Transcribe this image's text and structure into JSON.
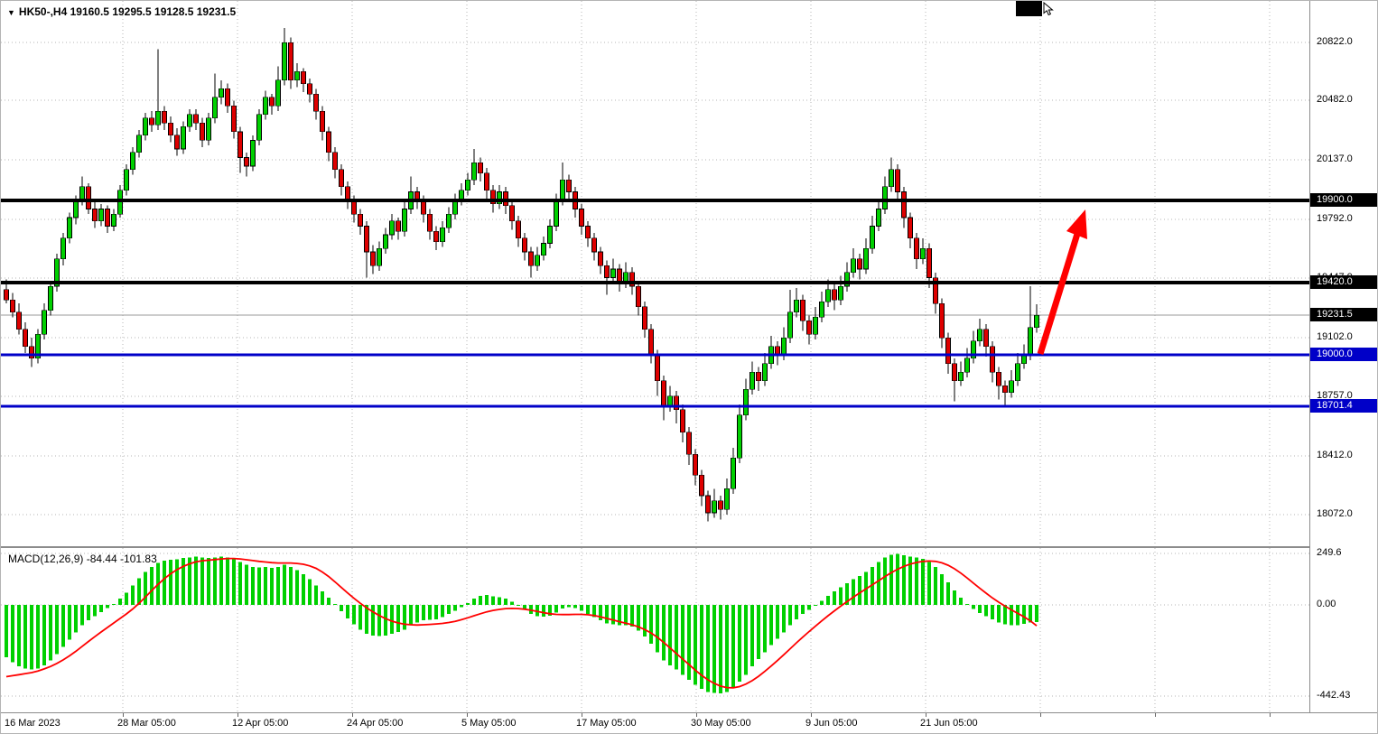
{
  "header": {
    "collapse_icon": "▼",
    "symbol_line": "HK50-,H4 19160.5 19295.5 19128.5 19231.5"
  },
  "chart_data": {
    "type": "candlestick",
    "symbol": "HK50-",
    "timeframe": "H4",
    "last_bar": {
      "open": 19160.5,
      "high": 19295.5,
      "low": 19128.5,
      "close": 19231.5
    },
    "current_price": 19231.5,
    "y_axis_ticks": [
      20822,
      20482,
      20137,
      19792,
      19447,
      19102,
      18757,
      18412,
      18072
    ],
    "x_axis_labels": [
      "16 Mar 2023",
      "28 Mar 05:00",
      "12 Apr 05:00",
      "24 Apr 05:00",
      "5 May 05:00",
      "17 May 05:00",
      "30 May 05:00",
      "9 Jun 05:00",
      "21 Jun 05:00"
    ],
    "price_labels": [
      {
        "text": "19900.0",
        "price": 19900,
        "style": "black"
      },
      {
        "text": "19420.0",
        "price": 19420,
        "style": "black"
      },
      {
        "text": "19231.5",
        "price": 19231.5,
        "style": "black"
      },
      {
        "text": "19000.0",
        "price": 19000,
        "style": "blue"
      },
      {
        "text": "18701.4",
        "price": 18701.4,
        "style": "blue"
      }
    ],
    "horizontal_lines": [
      {
        "price": 19900,
        "color": "#000000",
        "width": 4
      },
      {
        "price": 19420,
        "color": "#000000",
        "width": 4
      },
      {
        "price": 19000,
        "color": "#0000C8",
        "width": 3
      },
      {
        "price": 18701.4,
        "color": "#0000C8",
        "width": 3
      }
    ],
    "annotations": {
      "arrow": {
        "type": "up-trend-arrow",
        "color": "#FF0000",
        "from_price": 19050,
        "to_price": 19840
      }
    },
    "colors": {
      "bull": "#00D000",
      "bear": "#DE0000",
      "wick": "#000000",
      "grid": "#b6b6b6",
      "macd_histogram": "#00D000",
      "macd_signal": "#FF0000",
      "arrow": "#FF0000"
    },
    "candles": [
      [
        19380,
        19440,
        19300,
        19320
      ],
      [
        19320,
        19360,
        19220,
        19250
      ],
      [
        19250,
        19300,
        19120,
        19150
      ],
      [
        19150,
        19190,
        19010,
        19050
      ],
      [
        19050,
        19100,
        18930,
        18980
      ],
      [
        18980,
        19150,
        18950,
        19120
      ],
      [
        19120,
        19300,
        19090,
        19260
      ],
      [
        19260,
        19430,
        19230,
        19400
      ],
      [
        19400,
        19590,
        19370,
        19560
      ],
      [
        19560,
        19710,
        19520,
        19680
      ],
      [
        19680,
        19830,
        19650,
        19800
      ],
      [
        19800,
        19930,
        19760,
        19900
      ],
      [
        19900,
        20040,
        19870,
        19980
      ],
      [
        19980,
        20000,
        19820,
        19850
      ],
      [
        19850,
        19890,
        19740,
        19780
      ],
      [
        19780,
        19880,
        19750,
        19850
      ],
      [
        19850,
        19870,
        19710,
        19750
      ],
      [
        19750,
        19850,
        19720,
        19820
      ],
      [
        19820,
        19990,
        19800,
        19960
      ],
      [
        19960,
        20110,
        19930,
        20080
      ],
      [
        20080,
        20210,
        20050,
        20180
      ],
      [
        20180,
        20310,
        20150,
        20280
      ],
      [
        20280,
        20410,
        20250,
        20380
      ],
      [
        20380,
        20420,
        20300,
        20340
      ],
      [
        20340,
        20780,
        20310,
        20420
      ],
      [
        20420,
        20450,
        20310,
        20350
      ],
      [
        20350,
        20390,
        20240,
        20280
      ],
      [
        20280,
        20320,
        20160,
        20200
      ],
      [
        20200,
        20360,
        20170,
        20330
      ],
      [
        20330,
        20430,
        20300,
        20400
      ],
      [
        20400,
        20430,
        20310,
        20350
      ],
      [
        20350,
        20380,
        20210,
        20250
      ],
      [
        20250,
        20410,
        20220,
        20380
      ],
      [
        20380,
        20640,
        20350,
        20500
      ],
      [
        20500,
        20600,
        20460,
        20550
      ],
      [
        20550,
        20580,
        20410,
        20450
      ],
      [
        20450,
        20480,
        20260,
        20300
      ],
      [
        20300,
        20330,
        20060,
        20150
      ],
      [
        20150,
        20180,
        20040,
        20100
      ],
      [
        20100,
        20280,
        20070,
        20250
      ],
      [
        20250,
        20430,
        20220,
        20400
      ],
      [
        20400,
        20540,
        20370,
        20500
      ],
      [
        20500,
        20520,
        20400,
        20450
      ],
      [
        20450,
        20680,
        20420,
        20600
      ],
      [
        20600,
        20905,
        20570,
        20820
      ],
      [
        20820,
        20850,
        20550,
        20600
      ],
      [
        20600,
        20700,
        20560,
        20650
      ],
      [
        20650,
        20670,
        20530,
        20580
      ],
      [
        20580,
        20610,
        20470,
        20520
      ],
      [
        20520,
        20550,
        20370,
        20420
      ],
      [
        20420,
        20450,
        20250,
        20300
      ],
      [
        20300,
        20330,
        20130,
        20180
      ],
      [
        20180,
        20210,
        20030,
        20080
      ],
      [
        20080,
        20110,
        19930,
        19980
      ],
      [
        19980,
        20010,
        19850,
        19900
      ],
      [
        19900,
        19930,
        19770,
        19820
      ],
      [
        19820,
        19850,
        19700,
        19750
      ],
      [
        19750,
        19780,
        19450,
        19600
      ],
      [
        19600,
        19640,
        19470,
        19520
      ],
      [
        19520,
        19660,
        19490,
        19620
      ],
      [
        19620,
        19740,
        19590,
        19700
      ],
      [
        19700,
        19820,
        19670,
        19780
      ],
      [
        19780,
        19800,
        19670,
        19720
      ],
      [
        19720,
        19890,
        19690,
        19850
      ],
      [
        19850,
        20040,
        19820,
        19950
      ],
      [
        19950,
        19980,
        19850,
        19900
      ],
      [
        19900,
        19930,
        19770,
        19820
      ],
      [
        19820,
        19850,
        19670,
        19720
      ],
      [
        19720,
        19750,
        19610,
        19660
      ],
      [
        19660,
        19780,
        19630,
        19740
      ],
      [
        19740,
        19860,
        19710,
        19820
      ],
      [
        19820,
        19940,
        19790,
        19900
      ],
      [
        19900,
        20000,
        19870,
        19960
      ],
      [
        19960,
        20060,
        19930,
        20020
      ],
      [
        20020,
        20200,
        19990,
        20120
      ],
      [
        20120,
        20150,
        20010,
        20060
      ],
      [
        20060,
        20090,
        19910,
        19960
      ],
      [
        19960,
        19990,
        19830,
        19880
      ],
      [
        19880,
        19990,
        19850,
        19950
      ],
      [
        19950,
        19980,
        19820,
        19870
      ],
      [
        19870,
        19900,
        19730,
        19780
      ],
      [
        19780,
        19810,
        19630,
        19680
      ],
      [
        19680,
        19710,
        19550,
        19600
      ],
      [
        19600,
        19630,
        19450,
        19520
      ],
      [
        19520,
        19630,
        19490,
        19580
      ],
      [
        19580,
        19690,
        19550,
        19650
      ],
      [
        19650,
        19790,
        19620,
        19750
      ],
      [
        19750,
        19940,
        19720,
        19900
      ],
      [
        19900,
        20120,
        19870,
        20020
      ],
      [
        20020,
        20050,
        19900,
        19950
      ],
      [
        19950,
        19980,
        19800,
        19850
      ],
      [
        19850,
        19880,
        19700,
        19750
      ],
      [
        19750,
        19780,
        19630,
        19680
      ],
      [
        19680,
        19710,
        19550,
        19600
      ],
      [
        19600,
        19630,
        19470,
        19520
      ],
      [
        19520,
        19550,
        19350,
        19450
      ],
      [
        19450,
        19560,
        19420,
        19500
      ],
      [
        19500,
        19530,
        19370,
        19420
      ],
      [
        19420,
        19540,
        19390,
        19480
      ],
      [
        19480,
        19510,
        19350,
        19400
      ],
      [
        19400,
        19430,
        19230,
        19280
      ],
      [
        19280,
        19310,
        19100,
        19150
      ],
      [
        19150,
        19180,
        18950,
        19000
      ],
      [
        19000,
        19030,
        18760,
        18850
      ],
      [
        18850,
        18880,
        18620,
        18700
      ],
      [
        18700,
        18820,
        18670,
        18760
      ],
      [
        18760,
        18790,
        18600,
        18680
      ],
      [
        18680,
        18710,
        18490,
        18550
      ],
      [
        18550,
        18580,
        18360,
        18420
      ],
      [
        18420,
        18450,
        18240,
        18300
      ],
      [
        18300,
        18330,
        18120,
        18180
      ],
      [
        18180,
        18210,
        18030,
        18080
      ],
      [
        18080,
        18220,
        18050,
        18150
      ],
      [
        18150,
        18180,
        18040,
        18100
      ],
      [
        18100,
        18280,
        18070,
        18220
      ],
      [
        18220,
        18460,
        18190,
        18400
      ],
      [
        18400,
        18710,
        18370,
        18650
      ],
      [
        18650,
        18860,
        18620,
        18800
      ],
      [
        18800,
        18960,
        18770,
        18900
      ],
      [
        18900,
        18930,
        18790,
        18850
      ],
      [
        18850,
        19010,
        18820,
        18950
      ],
      [
        18950,
        19110,
        18920,
        19050
      ],
      [
        19050,
        19080,
        18940,
        19000
      ],
      [
        19000,
        19160,
        18970,
        19100
      ],
      [
        19100,
        19380,
        19070,
        19250
      ],
      [
        19250,
        19390,
        19220,
        19320
      ],
      [
        19320,
        19350,
        19140,
        19200
      ],
      [
        19200,
        19230,
        19060,
        19120
      ],
      [
        19120,
        19280,
        19090,
        19220
      ],
      [
        19220,
        19370,
        19190,
        19310
      ],
      [
        19310,
        19440,
        19280,
        19380
      ],
      [
        19380,
        19410,
        19260,
        19320
      ],
      [
        19320,
        19460,
        19290,
        19400
      ],
      [
        19400,
        19540,
        19370,
        19480
      ],
      [
        19480,
        19620,
        19450,
        19560
      ],
      [
        19560,
        19590,
        19440,
        19500
      ],
      [
        19500,
        19680,
        19470,
        19620
      ],
      [
        19620,
        19810,
        19590,
        19750
      ],
      [
        19750,
        19910,
        19720,
        19850
      ],
      [
        19850,
        20040,
        19820,
        19980
      ],
      [
        19980,
        20150,
        19950,
        20080
      ],
      [
        20080,
        20110,
        19900,
        19950
      ],
      [
        19950,
        19980,
        19740,
        19800
      ],
      [
        19800,
        19830,
        19620,
        19680
      ],
      [
        19680,
        19710,
        19500,
        19560
      ],
      [
        19560,
        19680,
        19530,
        19620
      ],
      [
        19620,
        19650,
        19390,
        19450
      ],
      [
        19450,
        19480,
        19240,
        19300
      ],
      [
        19300,
        19330,
        19040,
        19100
      ],
      [
        19100,
        19130,
        18890,
        18950
      ],
      [
        18950,
        18980,
        18730,
        18850
      ],
      [
        18850,
        18960,
        18820,
        18900
      ],
      [
        18900,
        19040,
        18870,
        18980
      ],
      [
        18980,
        19140,
        18950,
        19080
      ],
      [
        19080,
        19210,
        19050,
        19150
      ],
      [
        19150,
        19180,
        18990,
        19050
      ],
      [
        19050,
        19080,
        18840,
        18900
      ],
      [
        18900,
        18930,
        18740,
        18820
      ],
      [
        18820,
        18850,
        18700,
        18780
      ],
      [
        18780,
        18910,
        18750,
        18850
      ],
      [
        18850,
        19010,
        18820,
        18950
      ],
      [
        18950,
        19060,
        18920,
        19000
      ],
      [
        19000,
        19400,
        18970,
        19160
      ],
      [
        19160.5,
        19295.5,
        19128.5,
        19231.5
      ]
    ],
    "indicator": {
      "label": "MACD(12,26,9) -84.44 -101.83",
      "name": "MACD",
      "params": [
        12,
        26,
        9
      ],
      "main_value": -84.44,
      "signal_value": -101.83,
      "axis_ticks": [
        {
          "text": "249.6",
          "value": 249.6
        },
        {
          "text": "0.00",
          "value": 0
        },
        {
          "text": "-442.43",
          "value": -442.43
        }
      ],
      "histogram": [
        -255,
        -280,
        -300,
        -310,
        -315,
        -310,
        -295,
        -270,
        -240,
        -205,
        -170,
        -135,
        -100,
        -75,
        -55,
        -35,
        -15,
        5,
        30,
        60,
        95,
        130,
        160,
        185,
        205,
        215,
        220,
        222,
        228,
        232,
        235,
        230,
        228,
        232,
        235,
        230,
        222,
        210,
        195,
        185,
        182,
        185,
        180,
        185,
        195,
        185,
        170,
        150,
        125,
        95,
        65,
        35,
        5,
        -30,
        -65,
        -95,
        -120,
        -140,
        -150,
        -152,
        -150,
        -140,
        -132,
        -120,
        -100,
        -85,
        -75,
        -72,
        -70,
        -60,
        -45,
        -28,
        -10,
        8,
        30,
        45,
        48,
        42,
        38,
        30,
        15,
        -5,
        -25,
        -45,
        -55,
        -58,
        -52,
        -38,
        -18,
        -10,
        -15,
        -28,
        -45,
        -60,
        -75,
        -90,
        -95,
        -100,
        -98,
        -105,
        -125,
        -155,
        -190,
        -230,
        -270,
        -295,
        -315,
        -340,
        -365,
        -390,
        -410,
        -425,
        -430,
        -432,
        -425,
        -405,
        -375,
        -340,
        -300,
        -265,
        -230,
        -195,
        -165,
        -135,
        -100,
        -70,
        -45,
        -25,
        -5,
        20,
        45,
        65,
        85,
        105,
        125,
        140,
        160,
        185,
        210,
        230,
        245,
        248,
        242,
        235,
        230,
        225,
        210,
        185,
        150,
        110,
        70,
        35,
        5,
        -20,
        -40,
        -55,
        -70,
        -85,
        -95,
        -100,
        -98,
        -92,
        -86,
        -84.44
      ],
      "signal_line": [
        -350,
        -345,
        -340,
        -335,
        -330,
        -322,
        -312,
        -300,
        -285,
        -268,
        -248,
        -226,
        -202,
        -178,
        -155,
        -132,
        -110,
        -88,
        -66,
        -44,
        -20,
        8,
        38,
        70,
        100,
        128,
        152,
        172,
        188,
        200,
        210,
        215,
        218,
        221,
        224,
        226,
        226,
        224,
        220,
        216,
        212,
        209,
        206,
        204,
        204,
        204,
        202,
        198,
        190,
        178,
        160,
        138,
        112,
        85,
        58,
        32,
        8,
        -14,
        -34,
        -52,
        -67,
        -79,
        -88,
        -94,
        -97,
        -98,
        -97,
        -95,
        -93,
        -90,
        -86,
        -80,
        -72,
        -63,
        -53,
        -43,
        -34,
        -27,
        -22,
        -18,
        -17,
        -18,
        -21,
        -26,
        -32,
        -38,
        -43,
        -46,
        -47,
        -47,
        -46,
        -46,
        -48,
        -52,
        -58,
        -66,
        -74,
        -82,
        -89,
        -97,
        -107,
        -120,
        -137,
        -158,
        -183,
        -210,
        -237,
        -264,
        -291,
        -318,
        -343,
        -365,
        -383,
        -396,
        -403,
        -404,
        -398,
        -386,
        -369,
        -348,
        -324,
        -298,
        -271,
        -243,
        -214,
        -185,
        -157,
        -130,
        -104,
        -78,
        -53,
        -29,
        -6,
        16,
        38,
        58,
        78,
        98,
        118,
        138,
        157,
        174,
        188,
        199,
        207,
        212,
        214,
        212,
        205,
        193,
        176,
        155,
        131,
        106,
        81,
        57,
        34,
        13,
        -6,
        -24,
        -41,
        -58,
        -78,
        -101.83
      ]
    }
  }
}
